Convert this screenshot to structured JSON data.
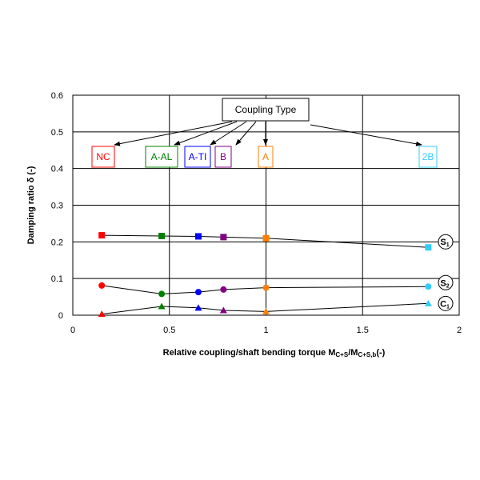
{
  "chart_data": {
    "type": "scatter",
    "title": "",
    "xlabel": {
      "main": "Relative coupling/shaft bending torque M",
      "sub1": "C+S",
      "slash": "/M",
      "sub2": "C+S,b",
      "tail": "(-)"
    },
    "ylabel": "Damping ratio δ (-)",
    "xlim": [
      0,
      2
    ],
    "ylim": [
      0,
      0.6
    ],
    "x_ticks": [
      "0",
      "0.5",
      "1",
      "1.5",
      "2"
    ],
    "y_ticks": [
      "0",
      "0.1",
      "0.2",
      "0.3",
      "0.4",
      "0.5",
      "0.6"
    ],
    "grid": "major",
    "series": [
      {
        "name": "S1",
        "label_main": "S",
        "label_sub": "1",
        "marker": "square",
        "points": [
          {
            "x": 0.15,
            "y": 0.218,
            "color": "#ff0000"
          },
          {
            "x": 0.46,
            "y": 0.216,
            "color": "#008000"
          },
          {
            "x": 0.65,
            "y": 0.215,
            "color": "#0000ff"
          },
          {
            "x": 0.78,
            "y": 0.213,
            "color": "#800080"
          },
          {
            "x": 1.0,
            "y": 0.21,
            "color": "#ff7f00"
          },
          {
            "x": 1.84,
            "y": 0.185,
            "color": "#33ccff"
          }
        ]
      },
      {
        "name": "S2",
        "label_main": "S",
        "label_sub": "2",
        "marker": "circle",
        "points": [
          {
            "x": 0.15,
            "y": 0.081,
            "color": "#ff0000"
          },
          {
            "x": 0.46,
            "y": 0.058,
            "color": "#008000"
          },
          {
            "x": 0.65,
            "y": 0.063,
            "color": "#0000ff"
          },
          {
            "x": 0.78,
            "y": 0.07,
            "color": "#800080"
          },
          {
            "x": 1.0,
            "y": 0.075,
            "color": "#ff7f00"
          },
          {
            "x": 1.84,
            "y": 0.078,
            "color": "#33ccff"
          }
        ]
      },
      {
        "name": "C1",
        "label_main": "C",
        "label_sub": "1",
        "marker": "triangle",
        "points": [
          {
            "x": 0.15,
            "y": 0.003,
            "color": "#ff0000"
          },
          {
            "x": 0.46,
            "y": 0.024,
            "color": "#008000"
          },
          {
            "x": 0.65,
            "y": 0.02,
            "color": "#0000ff"
          },
          {
            "x": 0.78,
            "y": 0.013,
            "color": "#800080"
          },
          {
            "x": 1.0,
            "y": 0.01,
            "color": "#ff7f00"
          },
          {
            "x": 1.84,
            "y": 0.032,
            "color": "#33ccff"
          }
        ]
      }
    ],
    "annotation_title": "Coupling Type",
    "coupling_types": [
      {
        "label": "NC",
        "color": "#ff0000"
      },
      {
        "label": "A-AL",
        "color": "#008000"
      },
      {
        "label": "A-TI",
        "color": "#0000ff"
      },
      {
        "label": "B",
        "color": "#800080"
      },
      {
        "label": "A",
        "color": "#ff7f00"
      },
      {
        "label": "2B",
        "color": "#33ccff"
      }
    ]
  }
}
